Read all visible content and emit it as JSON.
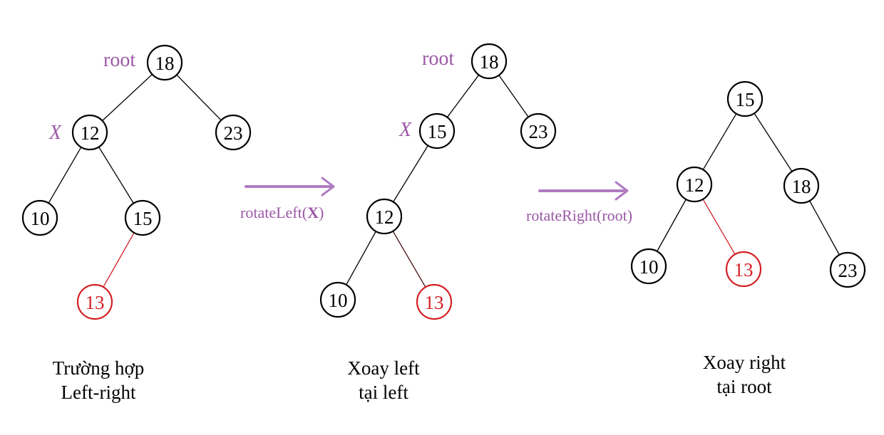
{
  "colors": {
    "node_stroke": "#000000",
    "highlight": "#d41f24",
    "annotation": "#9b59a6",
    "arrow": "#b07cc0",
    "dark_edge": "#4a0e14"
  },
  "tags": {
    "root": "root",
    "x": "X"
  },
  "arrows": [
    {
      "label_func": "rotateLeft(",
      "label_arg": "X",
      "label_close": ")"
    },
    {
      "label_func": "rotateRight(root)",
      "label_arg": "",
      "label_close": ""
    }
  ],
  "captions": [
    {
      "line1": "Trường hợp",
      "line2": "Left-right"
    },
    {
      "line1": "Xoay left",
      "line2": "tại left"
    },
    {
      "line1": "Xoay right",
      "line2": "tại root"
    }
  ],
  "trees": [
    {
      "name": "tree-left-right-case",
      "nodes": [
        {
          "id": "a18",
          "value": "18",
          "highlight": false
        },
        {
          "id": "a12",
          "value": "12",
          "highlight": false
        },
        {
          "id": "a23",
          "value": "23",
          "highlight": false
        },
        {
          "id": "a10",
          "value": "10",
          "highlight": false
        },
        {
          "id": "a15",
          "value": "15",
          "highlight": false
        },
        {
          "id": "a13",
          "value": "13",
          "highlight": true
        }
      ],
      "edges": [
        {
          "from": "a18",
          "to": "a12",
          "style": "normal"
        },
        {
          "from": "a18",
          "to": "a23",
          "style": "normal"
        },
        {
          "from": "a12",
          "to": "a10",
          "style": "normal"
        },
        {
          "from": "a12",
          "to": "a15",
          "style": "normal"
        },
        {
          "from": "a15",
          "to": "a13",
          "style": "highlight"
        }
      ]
    },
    {
      "name": "tree-after-rotate-left",
      "nodes": [
        {
          "id": "b18",
          "value": "18",
          "highlight": false
        },
        {
          "id": "b15",
          "value": "15",
          "highlight": false
        },
        {
          "id": "b23",
          "value": "23",
          "highlight": false
        },
        {
          "id": "b12",
          "value": "12",
          "highlight": false
        },
        {
          "id": "b10",
          "value": "10",
          "highlight": false
        },
        {
          "id": "b13",
          "value": "13",
          "highlight": true
        }
      ],
      "edges": [
        {
          "from": "b18",
          "to": "b15",
          "style": "normal"
        },
        {
          "from": "b18",
          "to": "b23",
          "style": "normal"
        },
        {
          "from": "b15",
          "to": "b12",
          "style": "normal"
        },
        {
          "from": "b12",
          "to": "b10",
          "style": "normal"
        },
        {
          "from": "b12",
          "to": "b13",
          "style": "dark"
        }
      ]
    },
    {
      "name": "tree-after-rotate-right",
      "nodes": [
        {
          "id": "c15",
          "value": "15",
          "highlight": false
        },
        {
          "id": "c12",
          "value": "12",
          "highlight": false
        },
        {
          "id": "c18",
          "value": "18",
          "highlight": false
        },
        {
          "id": "c10",
          "value": "10",
          "highlight": false
        },
        {
          "id": "c13",
          "value": "13",
          "highlight": true
        },
        {
          "id": "c23",
          "value": "23",
          "highlight": false
        }
      ],
      "edges": [
        {
          "from": "c15",
          "to": "c12",
          "style": "normal"
        },
        {
          "from": "c15",
          "to": "c18",
          "style": "normal"
        },
        {
          "from": "c12",
          "to": "c10",
          "style": "normal"
        },
        {
          "from": "c12",
          "to": "c13",
          "style": "highlight"
        },
        {
          "from": "c18",
          "to": "c23",
          "style": "normal"
        }
      ]
    }
  ]
}
